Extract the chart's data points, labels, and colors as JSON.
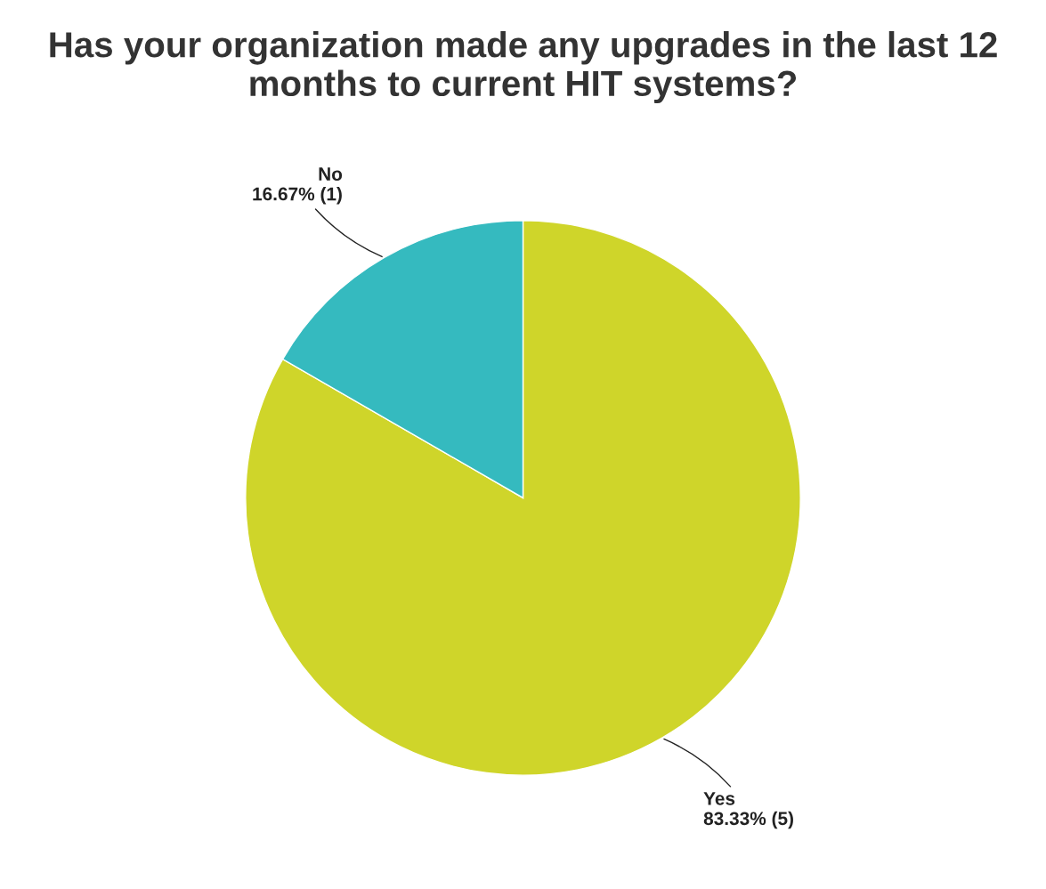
{
  "chart_data": {
    "type": "pie",
    "title": "Has your organization made any upgrades in the last 12 months to current HIT systems?",
    "categories": [
      "Yes",
      "No"
    ],
    "values": [
      5,
      1
    ],
    "colors": [
      "#cfd52a",
      "#35babf"
    ],
    "value_labels": [
      "83.33% (5)",
      "16.67% (1)"
    ]
  }
}
